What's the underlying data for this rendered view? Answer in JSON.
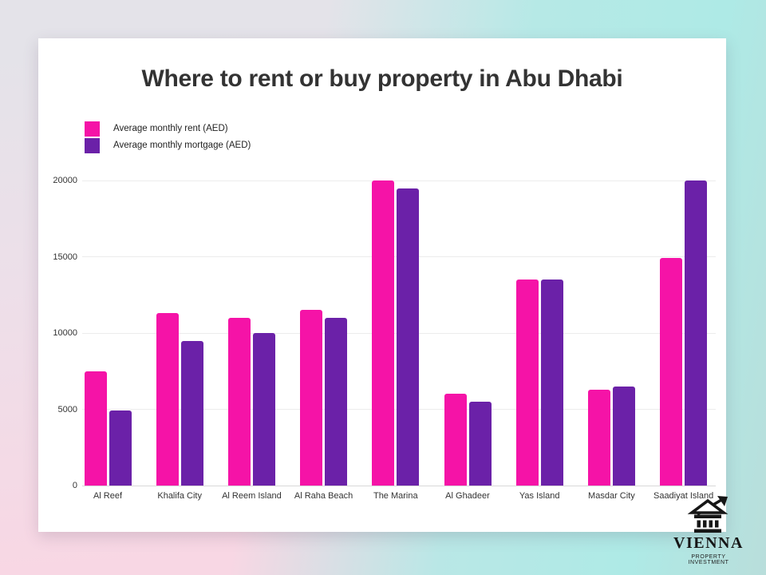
{
  "theme": {
    "bg-top-left": "#e4e3e9",
    "bg-bottom-left": "#f8d7e4",
    "bg-top-right": "#aeeae6",
    "bg-bottom-right": "#b9dedb",
    "panel": "#ffffff",
    "grid": "#ececec",
    "axis": "#d8d8d8",
    "text": "#333333"
  },
  "chart_data": {
    "type": "bar",
    "title": "Where to rent or buy property in Abu Dhabi",
    "categories": [
      "Al Reef",
      "Khalifa City",
      "Al Reem Island",
      "Al Raha Beach",
      "The Marina",
      "Al Ghadeer",
      "Yas Island",
      "Masdar City",
      "Saadiyat Island"
    ],
    "series": [
      {
        "key": "rent",
        "name": "Average monthly rent (AED)",
        "color": "#f513a7",
        "values": [
          7500,
          11300,
          11000,
          11500,
          20000,
          6000,
          13500,
          6300,
          14900
        ]
      },
      {
        "key": "mortgage",
        "name": "Average monthly mortgage (AED)",
        "color": "#6b21a8",
        "values": [
          4900,
          9500,
          10000,
          11000,
          19500,
          5500,
          13500,
          6500,
          20000
        ]
      }
    ],
    "xlabel": "",
    "ylabel": "",
    "ylim": [
      0,
      20000
    ],
    "yticks": [
      0,
      5000,
      10000,
      15000,
      20000
    ],
    "grid": true,
    "legend_position": "top-left"
  },
  "logo": {
    "brand": "VIENNA",
    "tagline": "PROPERTY INVESTMENT",
    "icon": "bank-building-growth-arrow-icon"
  }
}
